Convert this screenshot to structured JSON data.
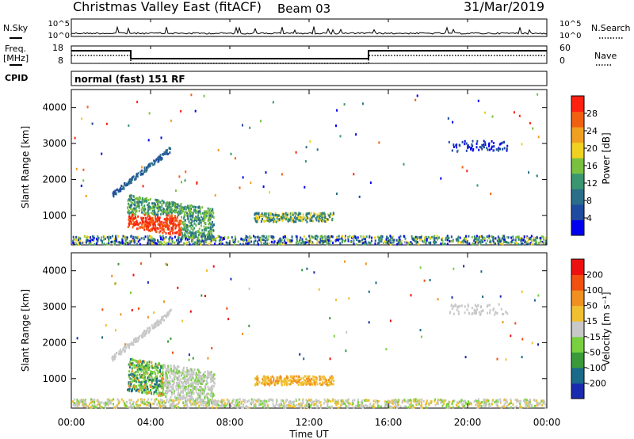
{
  "header": {
    "title": "Christmas Valley East (fitACF)",
    "beam": "Beam 03",
    "date": "31/Mar/2019"
  },
  "panel_labels": {
    "nsky": "N.Sky",
    "nsearch": "N.Search",
    "freq": "Freq.",
    "freq_unit": "[MHz]",
    "nave": "Nave",
    "cpid": "CPID",
    "cpid_text": "normal (fast) 151 RF"
  },
  "chart_data": [
    {
      "type": "line",
      "name": "noise",
      "y_left_ticks": [
        "10^5",
        "10^0"
      ],
      "y_right_ticks": [
        "10^5",
        "10^0"
      ]
    },
    {
      "type": "line",
      "name": "frequency-nave",
      "y_left_ticks": [
        "18",
        "8"
      ],
      "y_right_ticks": [
        "60",
        "0"
      ],
      "frequency_segments": [
        {
          "start_h": 0.0,
          "end_h": 3.0,
          "level": "high"
        },
        {
          "start_h": 3.0,
          "end_h": 15.0,
          "level": "low"
        },
        {
          "start_h": 15.0,
          "end_h": 24.0,
          "level": "high"
        }
      ]
    },
    {
      "type": "heatmap",
      "ylabel": "Slant Range [km]",
      "yticks": [
        "4000",
        "3000",
        "2000",
        "1000"
      ],
      "ytick_values": [
        4000,
        3000,
        2000,
        1000
      ],
      "ylim": [
        180,
        4500
      ],
      "colorbar_label": "Power [dB]",
      "colorbar_ticks": [
        "28",
        "24",
        "20",
        "16",
        "12",
        "8",
        "4"
      ],
      "colorbar_tick_values": [
        28,
        24,
        20,
        16,
        12,
        8,
        4
      ],
      "colorbar_range": [
        0,
        32
      ],
      "colors": [
        "#0000ee",
        "#1e4aa0",
        "#2a6e8a",
        "#3a9670",
        "#7ac040",
        "#f0d020",
        "#f0a020",
        "#f06010",
        "#ff2010"
      ]
    },
    {
      "type": "heatmap",
      "ylabel": "Slant Range [km]",
      "yticks": [
        "4000",
        "3000",
        "2000",
        "1000"
      ],
      "ytick_values": [
        4000,
        3000,
        2000,
        1000
      ],
      "ylim": [
        180,
        4500
      ],
      "colorbar_label": "Velocity [m s⁻¹]",
      "colorbar_ticks": [
        "200",
        "100",
        "50",
        "15",
        "-15",
        "-50",
        "-100",
        "-200"
      ],
      "colors": [
        "#1a2bb0",
        "#1a6a8a",
        "#3a9a3a",
        "#78d040",
        "#c8c8c8",
        "#f0c030",
        "#f09020",
        "#f05010",
        "#ee1010"
      ]
    }
  ],
  "x_axis": {
    "label": "Time UT",
    "ticks": [
      "00:00",
      "04:00",
      "08:00",
      "12:00",
      "16:00",
      "20:00",
      "00:00"
    ],
    "tick_hours": [
      0,
      4,
      8,
      12,
      16,
      20,
      24
    ]
  }
}
